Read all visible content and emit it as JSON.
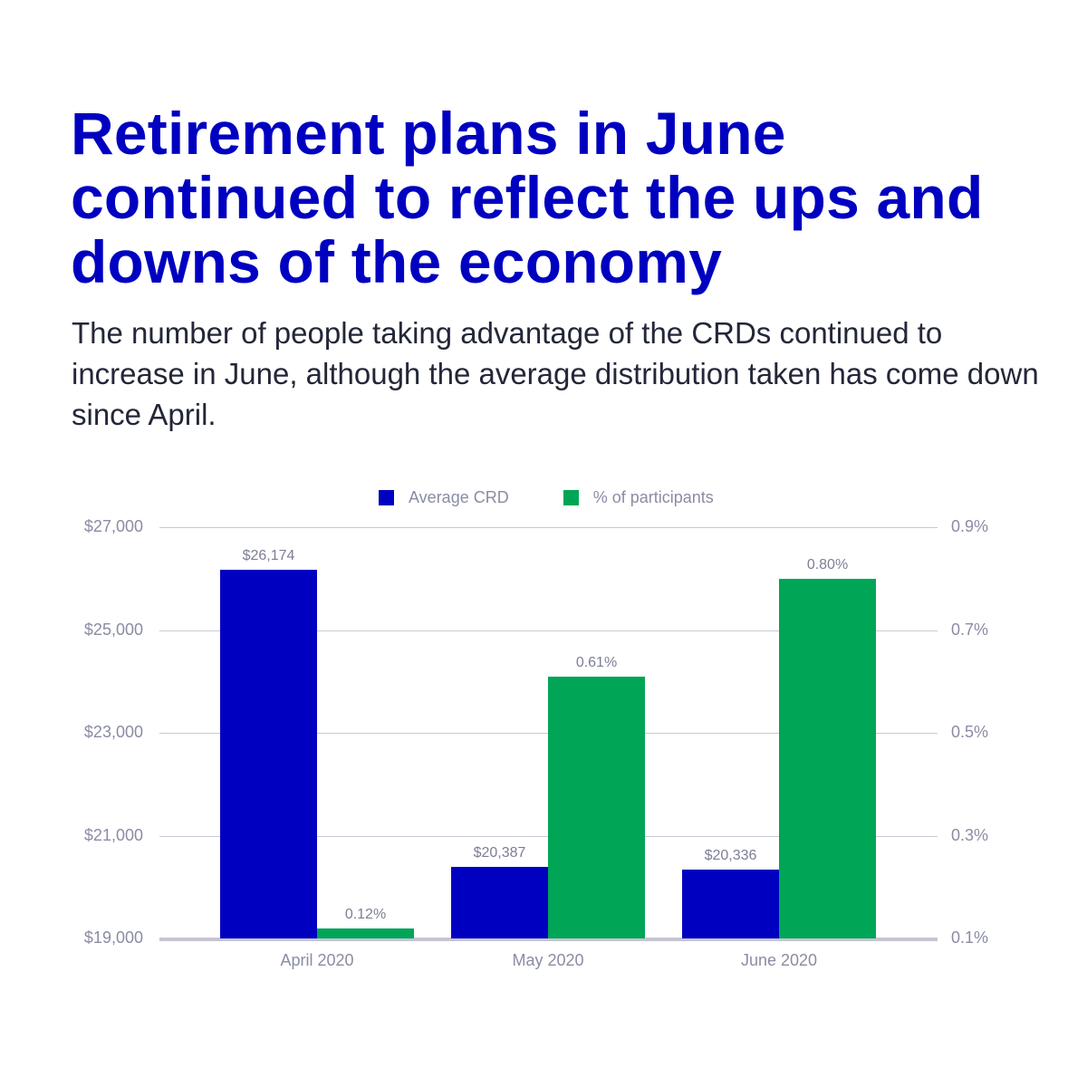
{
  "header": {
    "title": "Retirement plans in June continued to reflect the ups and downs of the economy",
    "subtitle": "The number of people taking advantage of the CRDs continued to increase in June, although the average distribution taken has come down since April."
  },
  "colors": {
    "title": "#0000c0",
    "subtitle": "#232738",
    "average_crd": "#0000c0",
    "pct_participants": "#00a556",
    "axis_text": "#8a8ca3",
    "gridline": "#c9c9d6"
  },
  "chart_data": {
    "type": "bar",
    "title": "",
    "categories": [
      "April 2020",
      "May 2020",
      "June 2020"
    ],
    "series": [
      {
        "name": "Average CRD",
        "axis": "left",
        "values": [
          26174,
          20387,
          20336
        ],
        "labels": [
          "$26,174",
          "$20,387",
          "$20,336"
        ],
        "color": "#0000c0"
      },
      {
        "name": "% of participants",
        "axis": "right",
        "values": [
          0.12,
          0.61,
          0.8
        ],
        "labels": [
          "0.12%",
          "0.61%",
          "0.80%"
        ],
        "color": "#00a556"
      }
    ],
    "xlabel": "",
    "ylabel": "",
    "ylim": [
      19000,
      27000
    ],
    "yticks": [
      "$19,000",
      "$21,000",
      "$23,000",
      "$25,000",
      "$27,000"
    ],
    "y2lim": [
      0.1,
      0.9
    ],
    "y2ticks": [
      "0.1%",
      "0.3%",
      "0.5%",
      "0.7%",
      "0.9%"
    ],
    "grid": true,
    "legend_position": "top"
  }
}
